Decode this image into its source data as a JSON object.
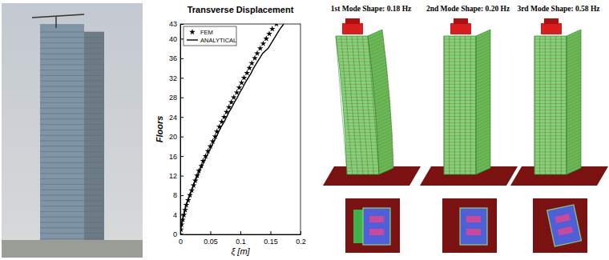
{
  "chart_data": {
    "type": "line",
    "title": "Transverse Displacement",
    "x_label": "ξ [m]",
    "y_label": "Floors",
    "orientation": "horizontal",
    "y": [
      0,
      1,
      2,
      3,
      4,
      5,
      6,
      7,
      8,
      9,
      10,
      11,
      12,
      13,
      14,
      15,
      16,
      17,
      18,
      19,
      20,
      21,
      22,
      23,
      24,
      25,
      26,
      27,
      28,
      29,
      30,
      31,
      32,
      33,
      34,
      35,
      36,
      37,
      38,
      39,
      40,
      41,
      42,
      43
    ],
    "series": [
      {
        "name": "FEM",
        "color": "#000000",
        "type": "scatter",
        "marker": "star",
        "values": [
          0,
          0.001,
          0.002,
          0.004,
          0.006,
          0.008,
          0.01,
          0.013,
          0.016,
          0.019,
          0.022,
          0.025,
          0.028,
          0.031,
          0.035,
          0.038,
          0.042,
          0.046,
          0.05,
          0.054,
          0.058,
          0.061,
          0.065,
          0.069,
          0.073,
          0.077,
          0.081,
          0.085,
          0.089,
          0.094,
          0.098,
          0.102,
          0.106,
          0.111,
          0.115,
          0.119,
          0.124,
          0.128,
          0.133,
          0.138,
          0.143,
          0.148,
          0.153,
          0.16
        ]
      },
      {
        "name": "ANALYTICAL",
        "color": "#000000",
        "type": "line",
        "line_style": "solid",
        "values": [
          0,
          0.001,
          0.002,
          0.004,
          0.006,
          0.008,
          0.01,
          0.013,
          0.016,
          0.019,
          0.022,
          0.025,
          0.029,
          0.032,
          0.036,
          0.04,
          0.044,
          0.048,
          0.052,
          0.056,
          0.06,
          0.064,
          0.068,
          0.073,
          0.077,
          0.081,
          0.086,
          0.09,
          0.095,
          0.099,
          0.104,
          0.108,
          0.113,
          0.118,
          0.122,
          0.127,
          0.132,
          0.137,
          0.146,
          0.151,
          0.156,
          0.161,
          0.166,
          0.172
        ]
      }
    ],
    "xlim": [
      0,
      0.2
    ],
    "xticks": [
      0,
      0.05,
      0.1,
      0.15,
      0.2
    ],
    "ylim": [
      0,
      43
    ],
    "yticks": [
      0,
      4,
      8,
      12,
      16,
      20,
      24,
      28,
      32,
      36,
      40,
      43
    ],
    "legend": "upper left",
    "grid": false,
    "annotations": [
      "1st Mode Shape: 0.18 Hz",
      "2nd Mode Shape: 0.20 Hz",
      "3rd Mode Shape: 0.58 Hz"
    ]
  }
}
